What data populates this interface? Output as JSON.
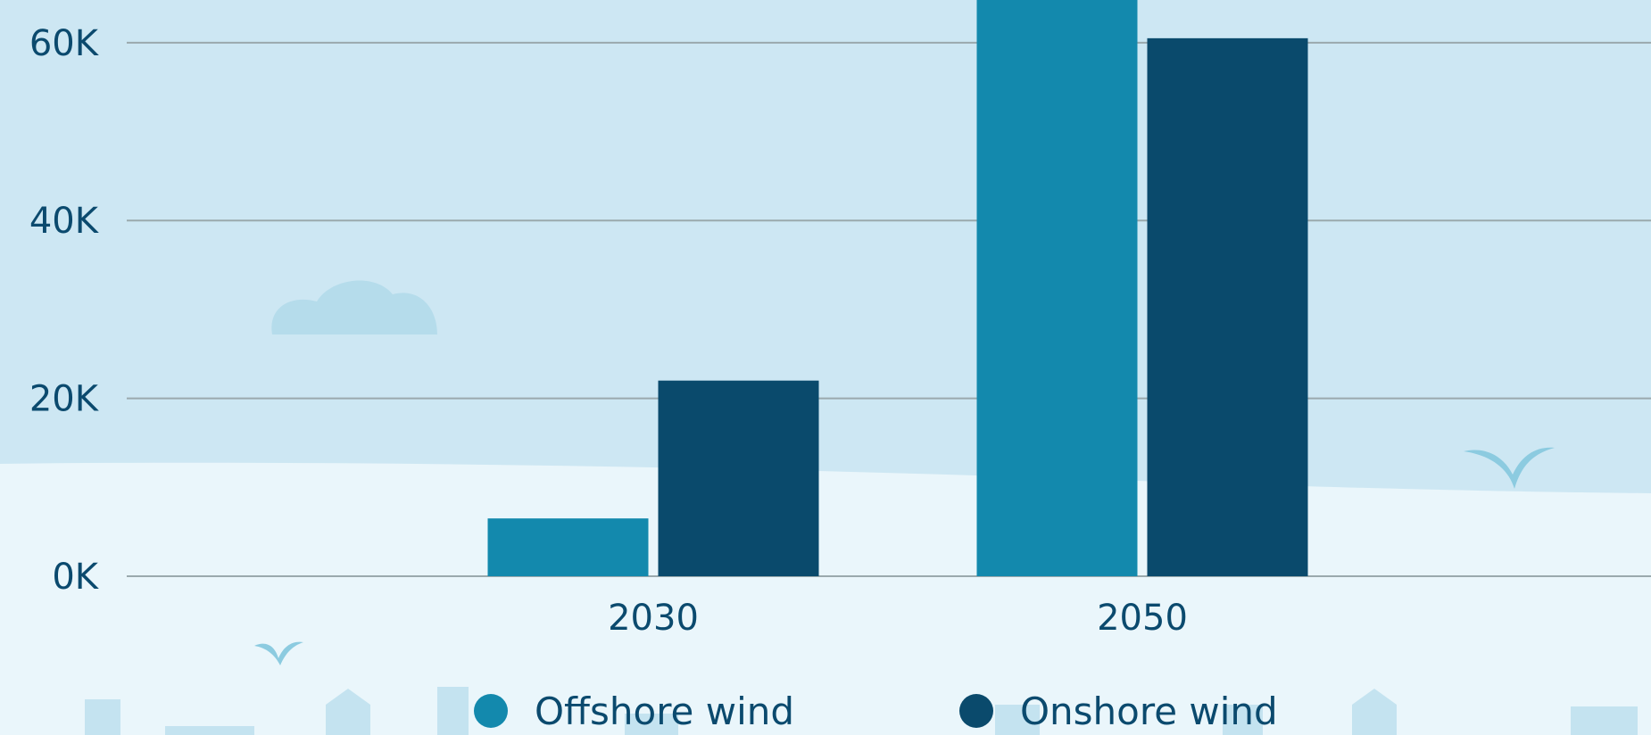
{
  "colors": {
    "sky": "#cde7f3",
    "ground": "#eaf6fb",
    "decor": "#b5dceb",
    "gridline": "#9aa9ad",
    "text": "#0b4a6e"
  },
  "chart_data": {
    "type": "bar",
    "categories": [
      "2030",
      "2050"
    ],
    "series": [
      {
        "name": "Offshore wind",
        "color": "#1389ad",
        "values": [
          6500,
          67000
        ]
      },
      {
        "name": "Onshore wind",
        "color": "#0a4a6c",
        "values": [
          22000,
          60500
        ]
      }
    ],
    "y_ticks": [
      {
        "value": 0,
        "label": "0K"
      },
      {
        "value": 20000,
        "label": "20K"
      },
      {
        "value": 40000,
        "label": "40K"
      },
      {
        "value": 60000,
        "label": "60K"
      }
    ],
    "ylim": [
      0,
      64800
    ],
    "grid": true,
    "legend_position": "bottom-center"
  }
}
